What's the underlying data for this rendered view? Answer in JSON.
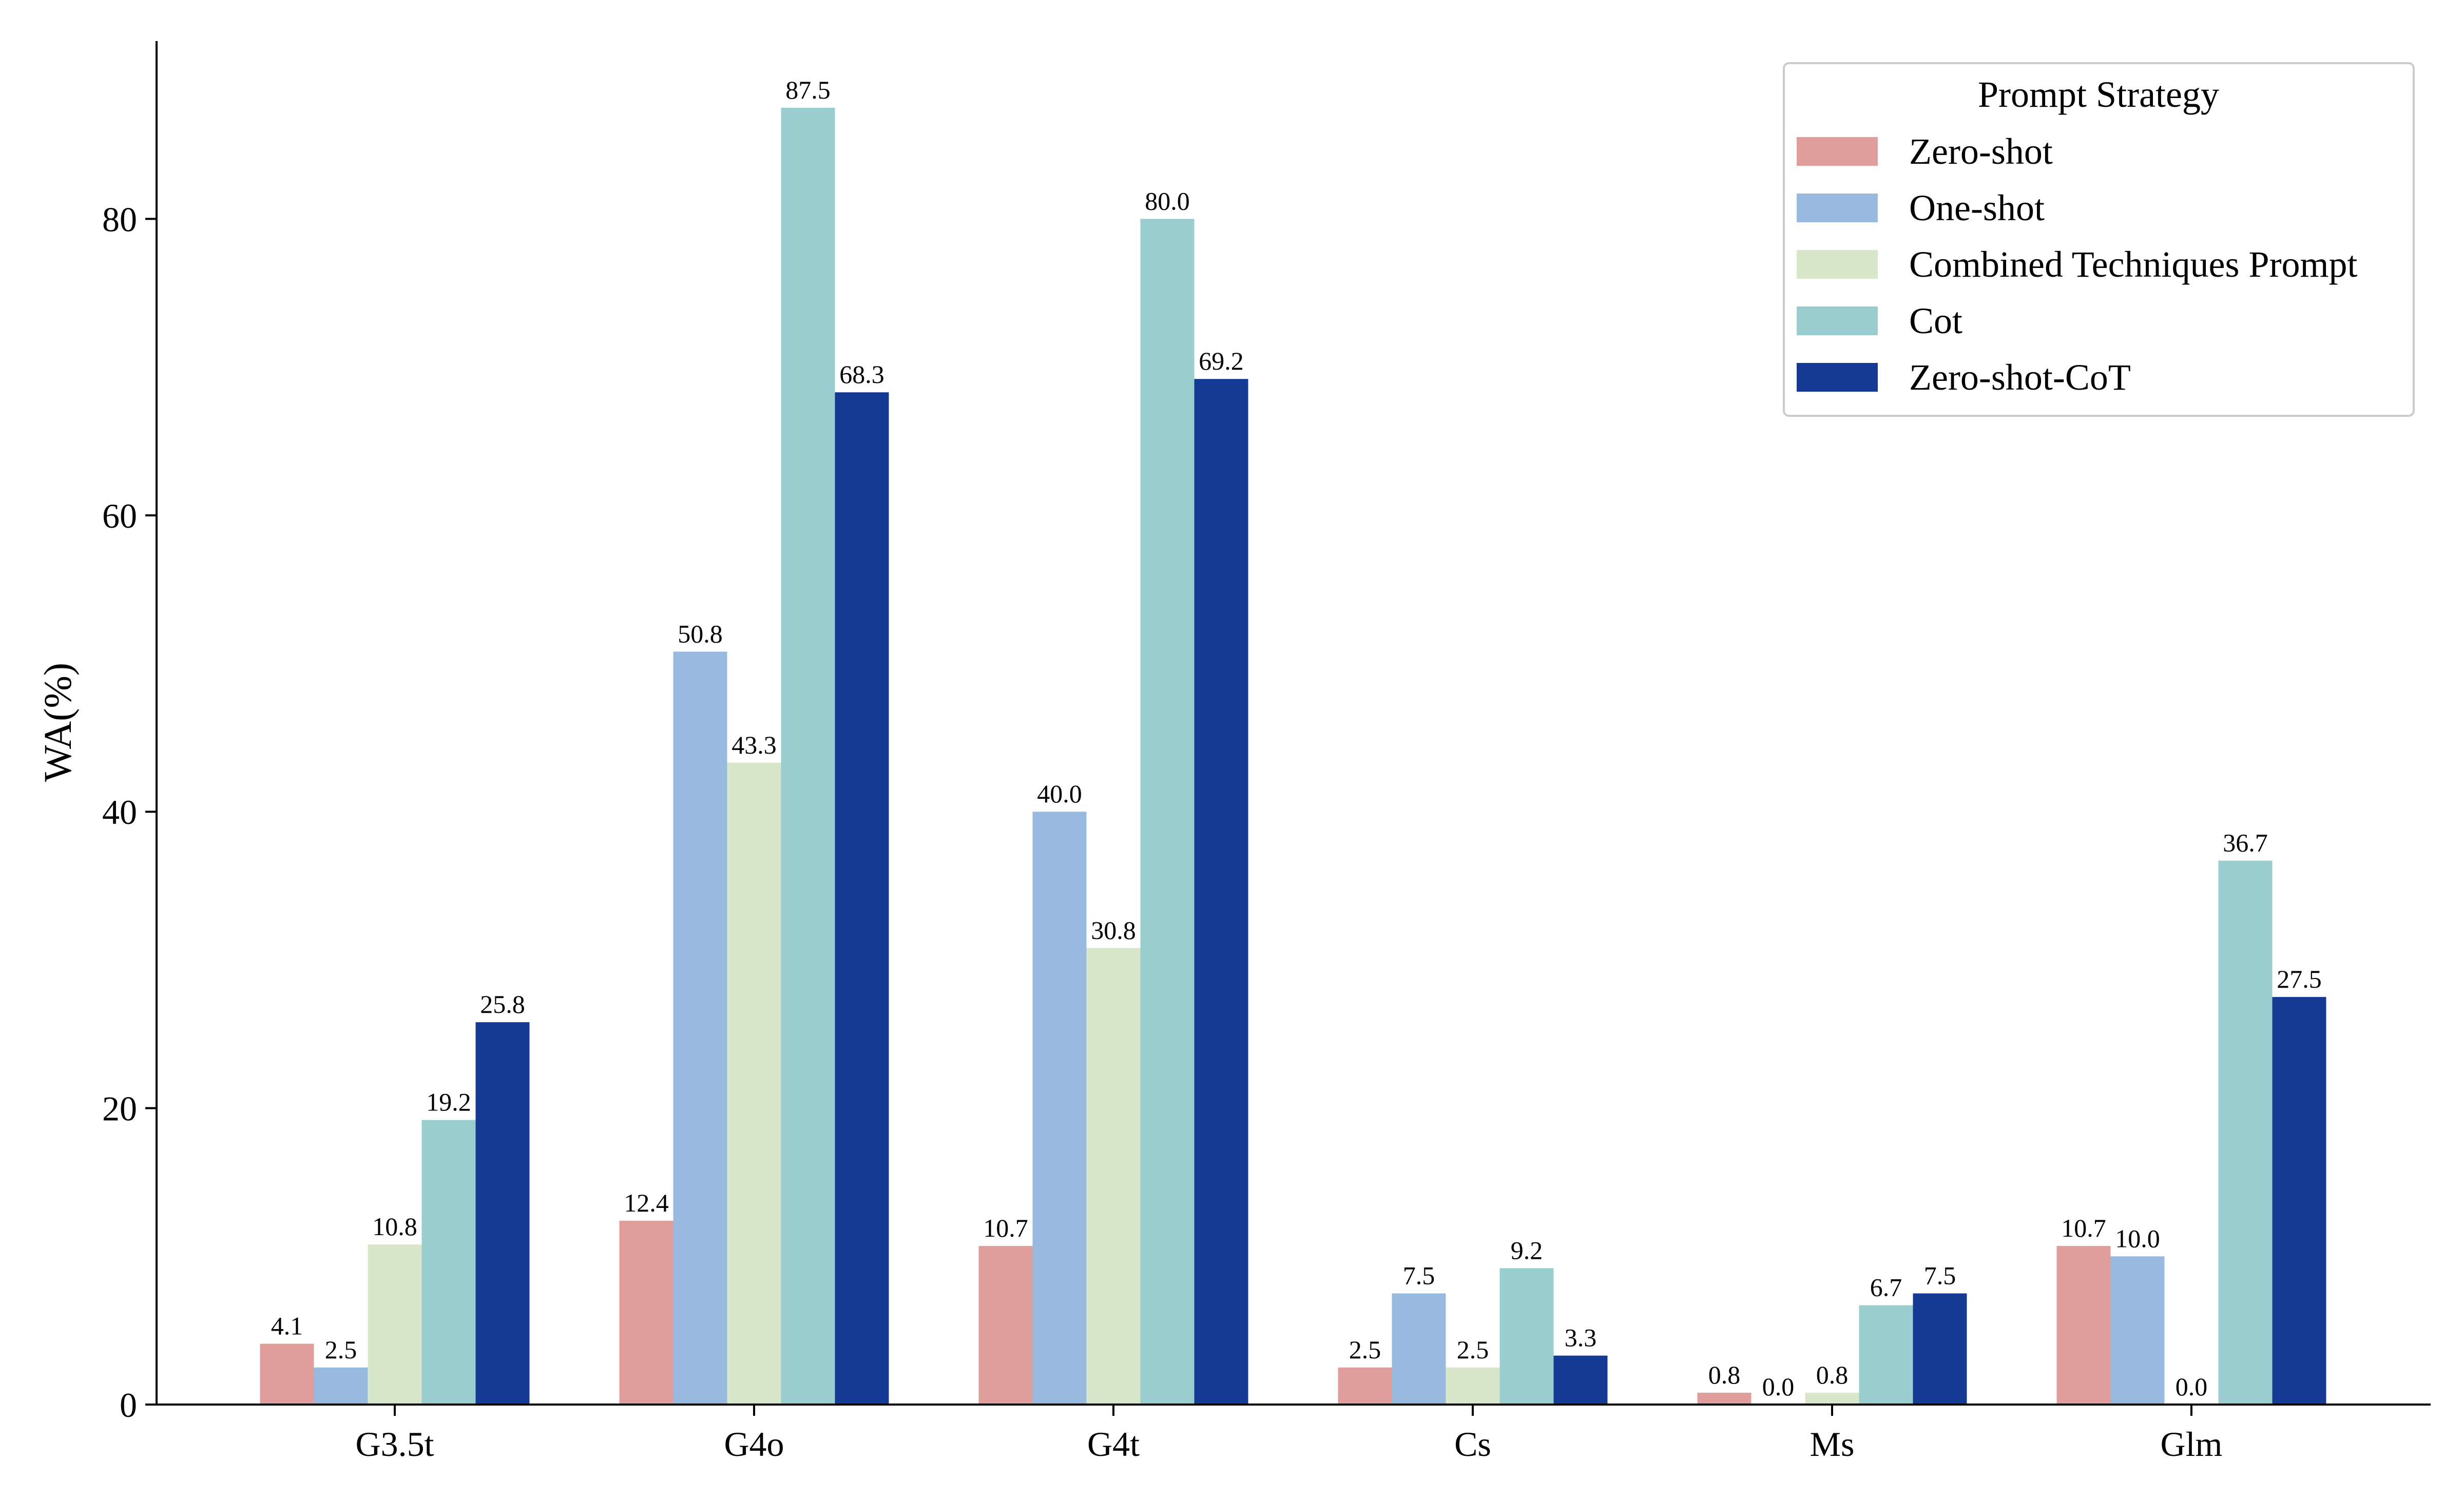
{
  "chart_data": {
    "type": "bar",
    "title": "",
    "xlabel": "",
    "ylabel": "WA(%)",
    "ylim": [
      0,
      92
    ],
    "yticks": [
      0,
      20,
      40,
      60,
      80
    ],
    "grid": false,
    "legend_title": "Prompt Strategy",
    "legend_position": "top-right",
    "categories": [
      "G3.5t",
      "G4o",
      "G4t",
      "Cs",
      "Ms",
      "Glm"
    ],
    "series": [
      {
        "name": "Zero-shot",
        "color": "#df9e9b",
        "values": [
          4.1,
          12.4,
          10.7,
          2.5,
          0.8,
          10.7
        ],
        "labels": [
          "4.1",
          "12.4",
          "10.7",
          "2.5",
          "0.8",
          "10.7"
        ]
      },
      {
        "name": "One-shot",
        "color": "#99badf",
        "values": [
          2.5,
          50.8,
          40.0,
          7.5,
          0.0,
          10.0
        ],
        "labels": [
          "2.5",
          "50.8",
          "40.0",
          "7.5",
          "0.0",
          "10.0"
        ]
      },
      {
        "name": "Combined Techniques Prompt",
        "color": "#d8e7ca",
        "values": [
          10.8,
          43.3,
          30.8,
          2.5,
          0.8,
          0.0
        ],
        "labels": [
          "10.8",
          "43.3",
          "30.8",
          "2.5",
          "0.8",
          "0.0"
        ]
      },
      {
        "name": "Cot",
        "color": "#99cdce",
        "values": [
          19.2,
          87.5,
          80.0,
          9.2,
          6.7,
          36.7
        ],
        "labels": [
          "19.2",
          "87.5",
          "80.0",
          "9.2",
          "6.7",
          "36.7"
        ]
      },
      {
        "name": "Zero-shot-CoT",
        "color": "#153a93",
        "values": [
          25.8,
          68.3,
          69.2,
          3.3,
          7.5,
          27.5
        ],
        "labels": [
          "25.8",
          "68.3",
          "69.2",
          "3.3",
          "7.5",
          "27.5"
        ]
      }
    ]
  }
}
